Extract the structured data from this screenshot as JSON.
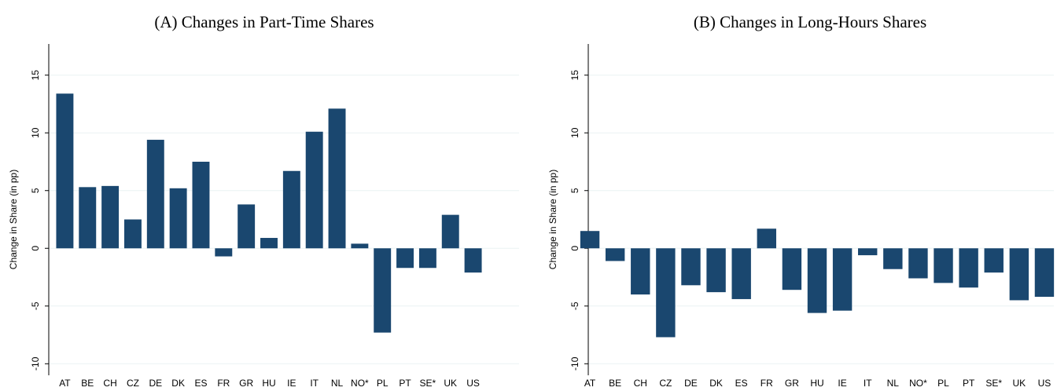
{
  "chart_data": [
    {
      "type": "bar",
      "title": "(A) Changes in Part-Time Shares",
      "ylabel": "Change in Share (in pp)",
      "categories": [
        "AT",
        "BE",
        "CH",
        "CZ",
        "DE",
        "DK",
        "ES",
        "FR",
        "GR",
        "HU",
        "IE",
        "IT",
        "NL",
        "NO*",
        "PL",
        "PT",
        "SE*",
        "UK",
        "US"
      ],
      "values": [
        13.4,
        5.3,
        5.4,
        2.5,
        9.4,
        5.2,
        7.5,
        -0.7,
        3.8,
        0.9,
        6.7,
        10.1,
        12.1,
        0.4,
        -7.3,
        -1.7,
        -1.7,
        2.9,
        -2.1
      ],
      "color": "#1a476f",
      "ylim": [
        -11,
        16
      ],
      "yticks": [
        -10,
        -5,
        0,
        5,
        10,
        15
      ],
      "grid": true
    },
    {
      "type": "bar",
      "title": "(B) Changes in Long-Hours Shares",
      "ylabel": "Change in Share (in pp)",
      "categories": [
        "AT",
        "BE",
        "CH",
        "CZ",
        "DE",
        "DK",
        "ES",
        "FR",
        "GR",
        "HU",
        "IE",
        "IT",
        "NL",
        "NO*",
        "PL",
        "PT",
        "SE*",
        "UK",
        "US"
      ],
      "values": [
        1.5,
        -1.1,
        -4.0,
        -7.7,
        -3.2,
        -3.8,
        -4.4,
        1.7,
        -3.6,
        -5.6,
        -5.4,
        -0.6,
        -1.8,
        -2.6,
        -3.0,
        -3.4,
        -2.1,
        -4.5,
        -4.2
      ],
      "color": "#1a476f",
      "ylim": [
        -11,
        16
      ],
      "yticks": [
        -10,
        -5,
        0,
        5,
        10,
        15
      ],
      "grid": true
    }
  ]
}
